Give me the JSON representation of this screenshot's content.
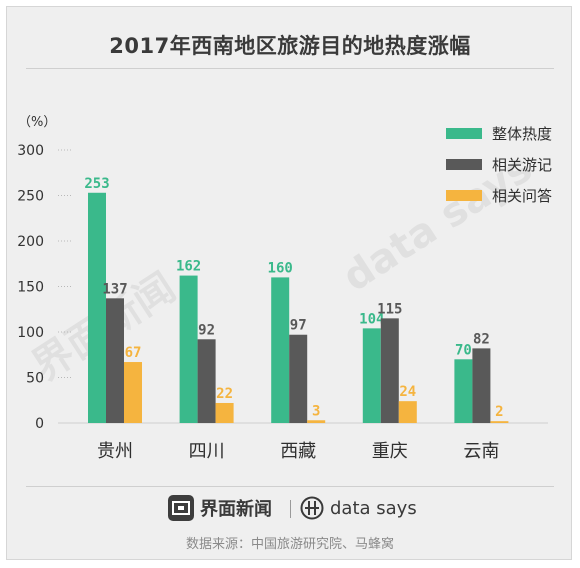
{
  "title": "2017年西南地区旅游目的地热度涨幅",
  "unit_label": "（%）",
  "watermarks": {
    "left": "界面新闻",
    "right": "data says"
  },
  "footer": {
    "brand_left": "界面新闻",
    "brand_right": "data says",
    "source": "数据来源：中国旅游研究院、马蜂窝"
  },
  "colors": {
    "background": "#efefef",
    "series": [
      "#3ab98b",
      "#595959",
      "#f5b43f"
    ],
    "axis_text": "#333333",
    "grid": "#b8b8b8"
  },
  "chart_data": {
    "type": "bar",
    "title": "2017年西南地区旅游目的地热度涨幅",
    "ylabel": "（%）",
    "xlabel": "",
    "ylim": [
      0,
      300
    ],
    "yticks": [
      0,
      50,
      100,
      150,
      200,
      250,
      300
    ],
    "grid": "dotted horizontal",
    "legend_position": "top-right",
    "categories": [
      "贵州",
      "四川",
      "西藏",
      "重庆",
      "云南"
    ],
    "series": [
      {
        "name": "整体热度",
        "values": [
          253,
          162,
          160,
          104,
          70
        ]
      },
      {
        "name": "相关游记",
        "values": [
          137,
          92,
          97,
          115,
          82
        ]
      },
      {
        "name": "相关问答",
        "values": [
          67,
          22,
          3,
          24,
          2
        ]
      }
    ]
  }
}
